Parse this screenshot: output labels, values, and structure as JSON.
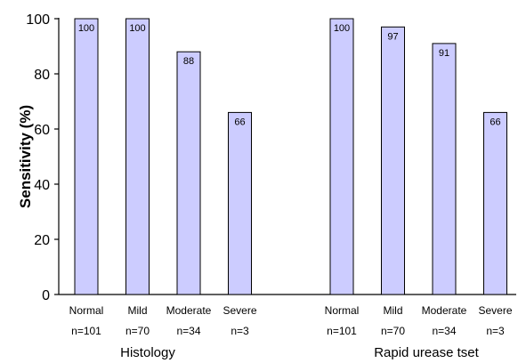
{
  "chart_data": {
    "type": "bar",
    "title": "",
    "ylabel": "Sensitivity (%)",
    "ylim": [
      0,
      100
    ],
    "yticks": [
      0,
      20,
      40,
      60,
      80,
      100
    ],
    "bar_color": "#ccccff",
    "groups": [
      {
        "name": "Histology",
        "categories": [
          "Normal",
          "Mild",
          "Moderate",
          "Severe"
        ],
        "counts": [
          "n=101",
          "n=70",
          "n=34",
          "n=3"
        ],
        "values": [
          100,
          100,
          88,
          66
        ]
      },
      {
        "name": "Rapid urease tset",
        "categories": [
          "Normal",
          "Mild",
          "Moderate",
          "Severe"
        ],
        "counts": [
          "n=101",
          "n=70",
          "n=34",
          "n=3"
        ],
        "values": [
          100,
          97,
          91,
          66
        ]
      }
    ]
  }
}
